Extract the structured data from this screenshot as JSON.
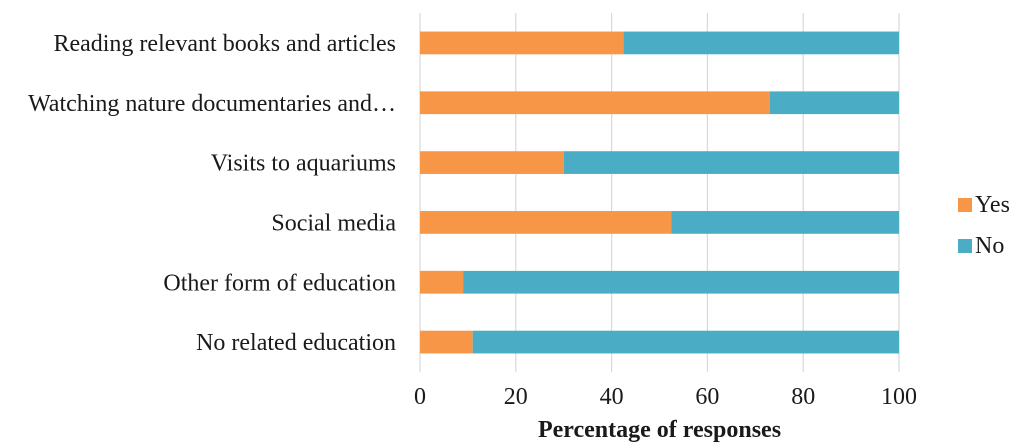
{
  "chart_data": {
    "type": "bar",
    "orientation": "horizontal",
    "stacked": true,
    "categories": [
      "Reading relevant books and articles",
      "Watching nature documentaries and…",
      "Visits to aquariums",
      "Social media",
      "Other form of education",
      "No related education"
    ],
    "series": [
      {
        "name": "Yes",
        "color": "#F79646",
        "values": [
          42.5,
          73,
          30,
          52.5,
          9,
          11
        ]
      },
      {
        "name": "No",
        "color": "#4BACC6",
        "values": [
          57.5,
          27,
          70,
          47.5,
          91,
          89
        ]
      }
    ],
    "xlabel": "Percentage of responses",
    "ylabel": "",
    "title": "",
    "xlim": [
      0,
      100
    ],
    "xticks": [
      "0",
      "20",
      "40",
      "60",
      "80",
      "100"
    ],
    "grid": "vertical",
    "legend": "right"
  }
}
